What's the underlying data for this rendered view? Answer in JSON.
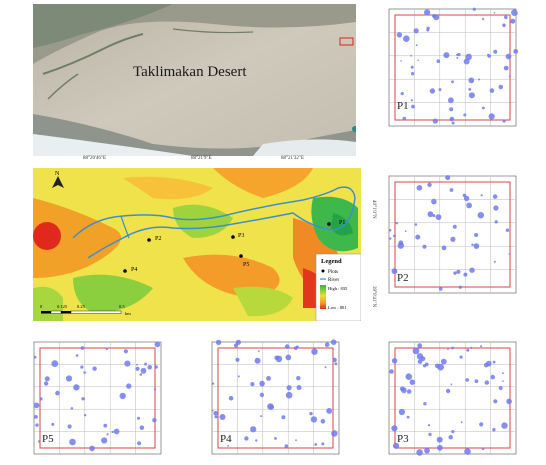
{
  "satellite": {
    "title": "Taklimakan Desert"
  },
  "elevation_map": {
    "top_ticks": [
      "88°20'46\"E",
      "88°21'9\"E",
      "88°21'32\"E"
    ],
    "right_ticks": [
      "40°1'0\"N",
      "39°0'41\"N"
    ],
    "points": [
      {
        "label": "P1"
      },
      {
        "label": "P2"
      },
      {
        "label": "P3"
      },
      {
        "label": "P4"
      },
      {
        "label": "P5"
      }
    ],
    "legend": {
      "title": "Legend",
      "plots": "Plots",
      "river": "River",
      "high": "High : 835",
      "low": "Low : 801"
    },
    "scale_labels": [
      "0",
      "0.125",
      "0.25",
      "0.5"
    ],
    "scale_unit": "km"
  },
  "plot_panels": [
    {
      "label": "P1"
    },
    {
      "label": "P2"
    },
    {
      "label": "P5"
    },
    {
      "label": "P4"
    },
    {
      "label": "P3"
    }
  ],
  "colors": {
    "plot_border": "#d64545",
    "dot": "#6f7bef",
    "river": "#3b8fcf",
    "grid": "#b9b9b9"
  }
}
